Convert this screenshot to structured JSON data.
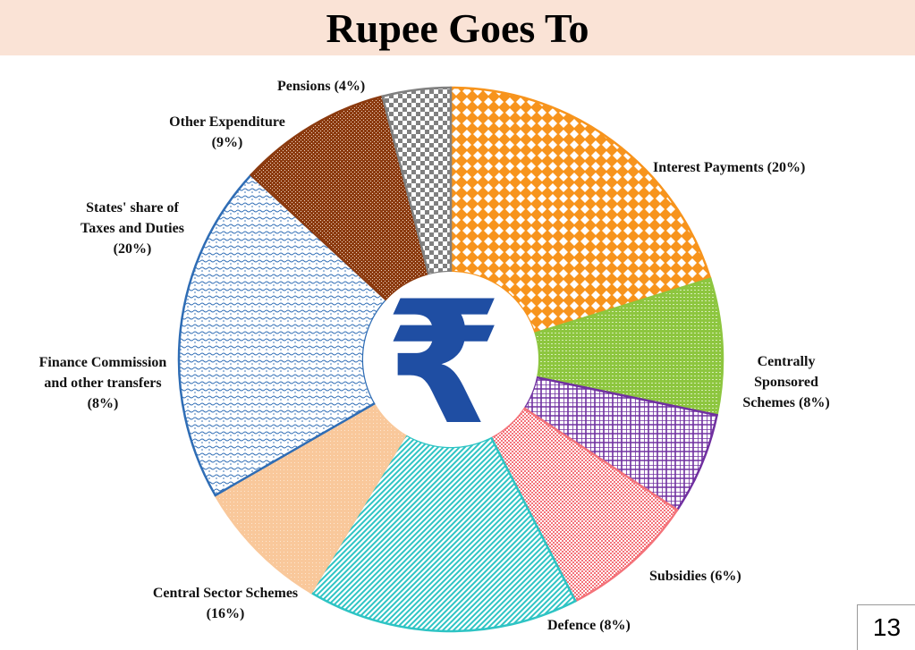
{
  "title": "Rupee Goes To",
  "page_number": "13",
  "center_symbol": "₹",
  "chart_data": {
    "type": "pie",
    "title": "Rupee Goes To",
    "slices": [
      {
        "label_lines": [
          "Interest Payments (20%)"
        ],
        "label": "Interest Payments",
        "value": 20,
        "color": "#f7941d"
      },
      {
        "label_lines": [
          "Centrally",
          "Sponsored",
          "Schemes (8%)"
        ],
        "label": "Centrally Sponsored Schemes",
        "value": 8,
        "color": "#8dc63f"
      },
      {
        "label_lines": [
          "Subsidies (6%)"
        ],
        "label": "Subsidies",
        "value": 6,
        "color": "#7030a0"
      },
      {
        "label_lines": [
          "Defence (8%)"
        ],
        "label": "Defence",
        "value": 8,
        "color": "#f4737a"
      },
      {
        "label_lines": [
          "Central Sector Schemes",
          "(16%)"
        ],
        "label": "Central Sector Schemes",
        "value": 16,
        "color": "#2ec4c4"
      },
      {
        "label_lines": [
          "Finance Commission",
          "and other transfers",
          "(8%)"
        ],
        "label": "Finance Commission and other transfers",
        "value": 8,
        "color": "#f9c89b"
      },
      {
        "label_lines": [
          "States' share of",
          "Taxes and Duties",
          "(20%)"
        ],
        "label": "States' share of Taxes and Duties",
        "value": 20,
        "color": "#2f6db5"
      },
      {
        "label_lines": [
          "Other Expenditure",
          "(9%)"
        ],
        "label": "Other Expenditure",
        "value": 9,
        "color": "#8b3a0f"
      },
      {
        "label_lines": [
          "Pensions (4%)"
        ],
        "label": "Pensions",
        "value": 4,
        "color": "#808080"
      }
    ]
  }
}
